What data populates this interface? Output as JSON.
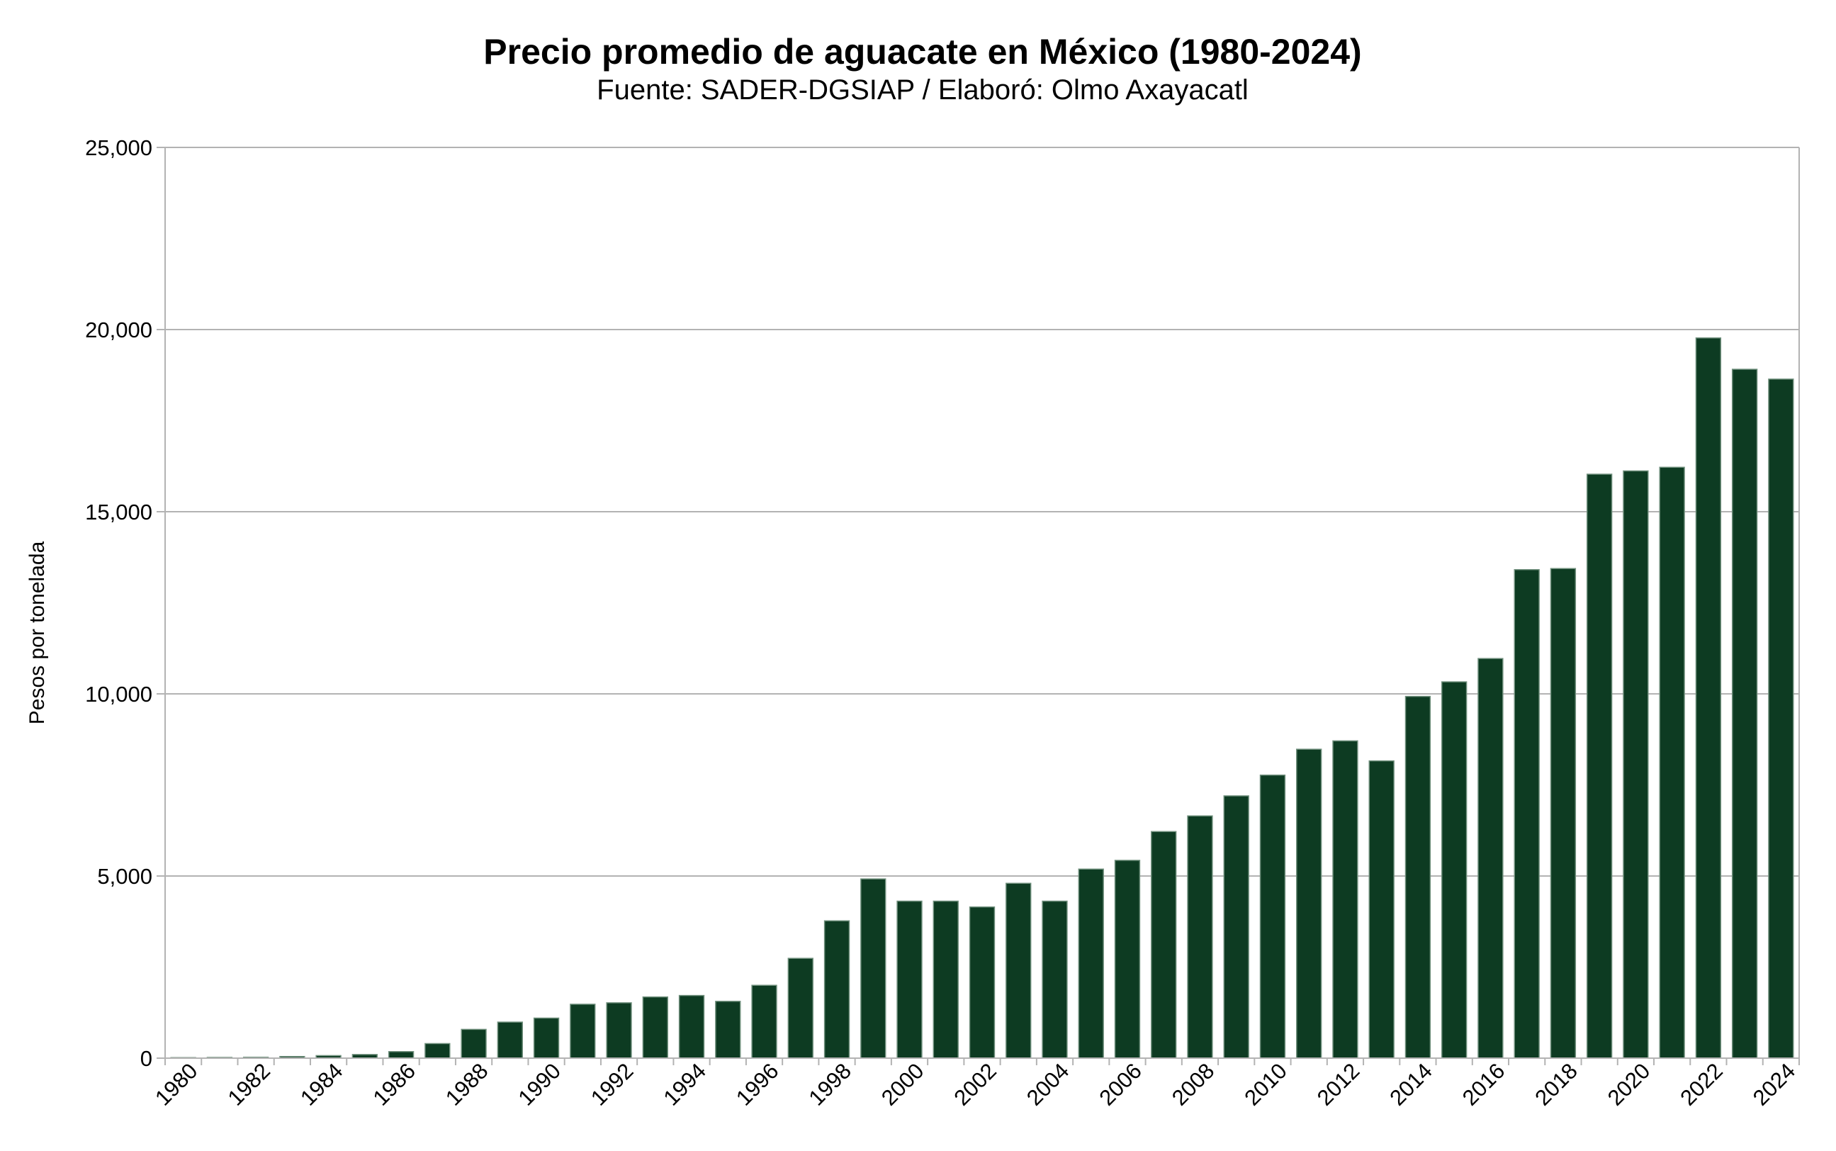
{
  "chart_data": {
    "type": "bar",
    "title": "Precio promedio de aguacate en México (1980-2024)",
    "subtitle": "Fuente: SADER-DGSIAP / Elaboró: Olmo Axayacatl",
    "xlabel": "",
    "ylabel": "Pesos por tonelada",
    "ylim": [
      0,
      25000
    ],
    "yticks": [
      "0",
      "5,000",
      "10,000",
      "15,000",
      "20,000",
      "25,000"
    ],
    "ytick_values": [
      0,
      5000,
      10000,
      15000,
      20000,
      25000
    ],
    "grid": true,
    "legend": "none",
    "bar_color": "#0d3b22",
    "categories": [
      "1980",
      "1981",
      "1982",
      "1983",
      "1984",
      "1985",
      "1986",
      "1987",
      "1988",
      "1989",
      "1990",
      "1991",
      "1992",
      "1993",
      "1994",
      "1995",
      "1996",
      "1997",
      "1998",
      "1999",
      "2000",
      "2001",
      "2002",
      "2003",
      "2004",
      "2005",
      "2006",
      "2007",
      "2008",
      "2009",
      "2010",
      "2011",
      "2012",
      "2013",
      "2014",
      "2015",
      "2016",
      "2017",
      "2018",
      "2019",
      "2020",
      "2021",
      "2022",
      "2023",
      "2024"
    ],
    "xtick_labels": [
      "1980",
      "1982",
      "1984",
      "1986",
      "1988",
      "1990",
      "1992",
      "1994",
      "1996",
      "1998",
      "2000",
      "2002",
      "2004",
      "2006",
      "2008",
      "2010",
      "2012",
      "2014",
      "2016",
      "2018",
      "2020",
      "2022",
      "2024"
    ],
    "values": [
      15,
      20,
      25,
      45,
      70,
      100,
      180,
      400,
      790,
      990,
      1100,
      1480,
      1520,
      1680,
      1720,
      1560,
      2000,
      2740,
      3770,
      4920,
      4310,
      4310,
      4150,
      4800,
      4310,
      5190,
      5430,
      6220,
      6650,
      7200,
      7770,
      8480,
      8710,
      8160,
      9930,
      10330,
      10970,
      13410,
      13440,
      16030,
      16120,
      16220,
      19770,
      18910,
      18640
    ]
  }
}
